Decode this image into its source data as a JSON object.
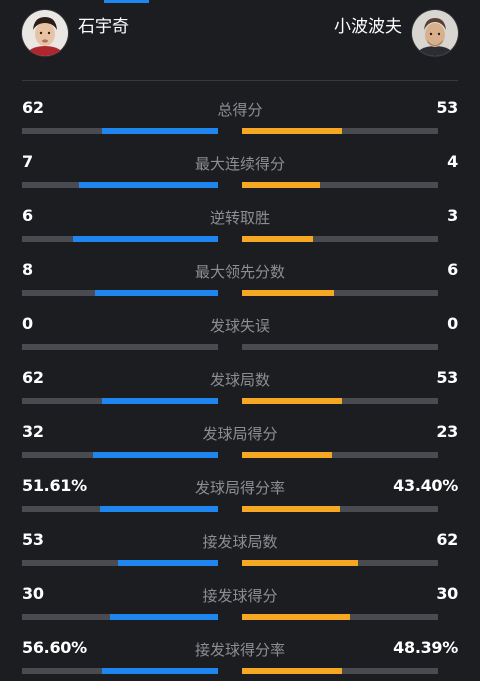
{
  "players": {
    "left": {
      "name": "石宇奇",
      "color": "#1f86f0"
    },
    "right": {
      "name": "小波波夫",
      "color": "#f7a823"
    }
  },
  "stats": [
    {
      "label": "总得分",
      "left": "62",
      "right": "53",
      "left_fill": 0.59,
      "right_fill": 0.51
    },
    {
      "label": "最大连续得分",
      "left": "7",
      "right": "4",
      "left_fill": 0.71,
      "right_fill": 0.4
    },
    {
      "label": "逆转取胜",
      "left": "6",
      "right": "3",
      "left_fill": 0.74,
      "right_fill": 0.36
    },
    {
      "label": "最大领先分数",
      "left": "8",
      "right": "6",
      "left_fill": 0.63,
      "right_fill": 0.47
    },
    {
      "label": "发球失误",
      "left": "0",
      "right": "0",
      "left_fill": 0,
      "right_fill": 0
    },
    {
      "label": "发球局数",
      "left": "62",
      "right": "53",
      "left_fill": 0.59,
      "right_fill": 0.51
    },
    {
      "label": "发球局得分",
      "left": "32",
      "right": "23",
      "left_fill": 0.64,
      "right_fill": 0.46
    },
    {
      "label": "发球局得分率",
      "left": "51.61%",
      "right": "43.40%",
      "left_fill": 0.6,
      "right_fill": 0.5
    },
    {
      "label": "接发球局数",
      "left": "53",
      "right": "62",
      "left_fill": 0.51,
      "right_fill": 0.59
    },
    {
      "label": "接发球得分",
      "left": "30",
      "right": "30",
      "left_fill": 0.55,
      "right_fill": 0.55
    },
    {
      "label": "接发球得分率",
      "left": "56.60%",
      "right": "48.39%",
      "left_fill": 0.59,
      "right_fill": 0.51
    }
  ]
}
